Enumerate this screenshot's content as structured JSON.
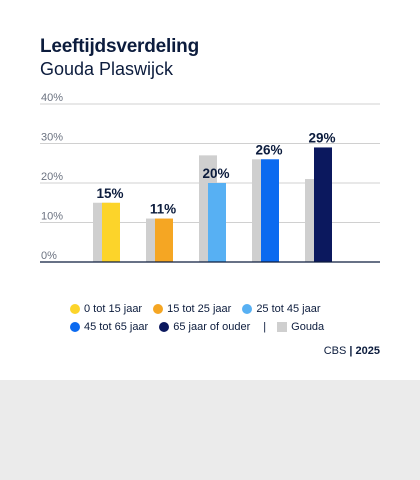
{
  "title": "Leeftijdsverdeling",
  "subtitle": "Gouda Plaswijck",
  "source": {
    "org": "CBS",
    "separator": "|",
    "year": "2025"
  },
  "colors": {
    "reference": "#cfcfcf",
    "series": [
      "#fcd42a",
      "#f5a623",
      "#57b0f3",
      "#0b6af0",
      "#0b185e"
    ],
    "grid": "#d0d0d0",
    "axis": "#0c1c3d"
  },
  "chart_data": {
    "type": "bar",
    "categories": [
      "0 tot 15 jaar",
      "15 tot 25 jaar",
      "25 tot 45 jaar",
      "45 tot 65 jaar",
      "65 jaar of ouder"
    ],
    "series": [
      {
        "name": "Gouda Plaswijck",
        "values": [
          15,
          11,
          20,
          26,
          29
        ]
      },
      {
        "name": "Gouda",
        "values": [
          15,
          11,
          27,
          26,
          21
        ]
      }
    ],
    "data_labels": [
      "15%",
      "11%",
      "20%",
      "26%",
      "29%"
    ],
    "yticks": [
      "0%",
      "10%",
      "20%",
      "30%",
      "40%"
    ],
    "ylim": [
      0,
      40
    ],
    "grid": true,
    "legend_position": "bottom"
  },
  "legend": {
    "row1": [
      {
        "label": "0 tot 15 jaar",
        "icon": "dot"
      },
      {
        "label": "15 tot 25 jaar",
        "icon": "dot"
      },
      {
        "label": "25 tot 45 jaar",
        "icon": "dot"
      }
    ],
    "row2": [
      {
        "label": "45 tot 65 jaar",
        "icon": "dot"
      },
      {
        "label": "65 jaar of ouder",
        "icon": "dot"
      }
    ],
    "separator": "|",
    "reference": {
      "label": "Gouda",
      "icon": "square"
    }
  }
}
